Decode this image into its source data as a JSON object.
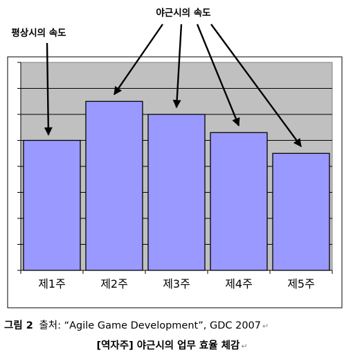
{
  "chart_data": {
    "type": "bar",
    "categories": [
      "제1주",
      "제2주",
      "제3주",
      "제4주",
      "제5주"
    ],
    "values": [
      5.0,
      6.5,
      6.0,
      5.3,
      4.5
    ],
    "ylim": [
      0,
      8
    ],
    "yticks": [
      0,
      1,
      2,
      3,
      4,
      5,
      6,
      7,
      8
    ],
    "grid": true,
    "annotations": [
      {
        "text": "평상시의 속도",
        "targets": [
          "제1주"
        ]
      },
      {
        "text": "야근시의 속도",
        "targets": [
          "제2주",
          "제3주",
          "제4주",
          "제5주"
        ]
      }
    ]
  },
  "colors": {
    "bar_fill": "#9999ff",
    "bar_stroke": "#000000",
    "plot_background": "#c0c0c0",
    "grid": "#000000"
  },
  "caption": {
    "figure_number": "그림 2",
    "source": "출처: “Agile Game Development”, GDC 2007",
    "subtitle": "[역자주] 야근시의 업무 효율 체감"
  },
  "return_mark": "↵"
}
